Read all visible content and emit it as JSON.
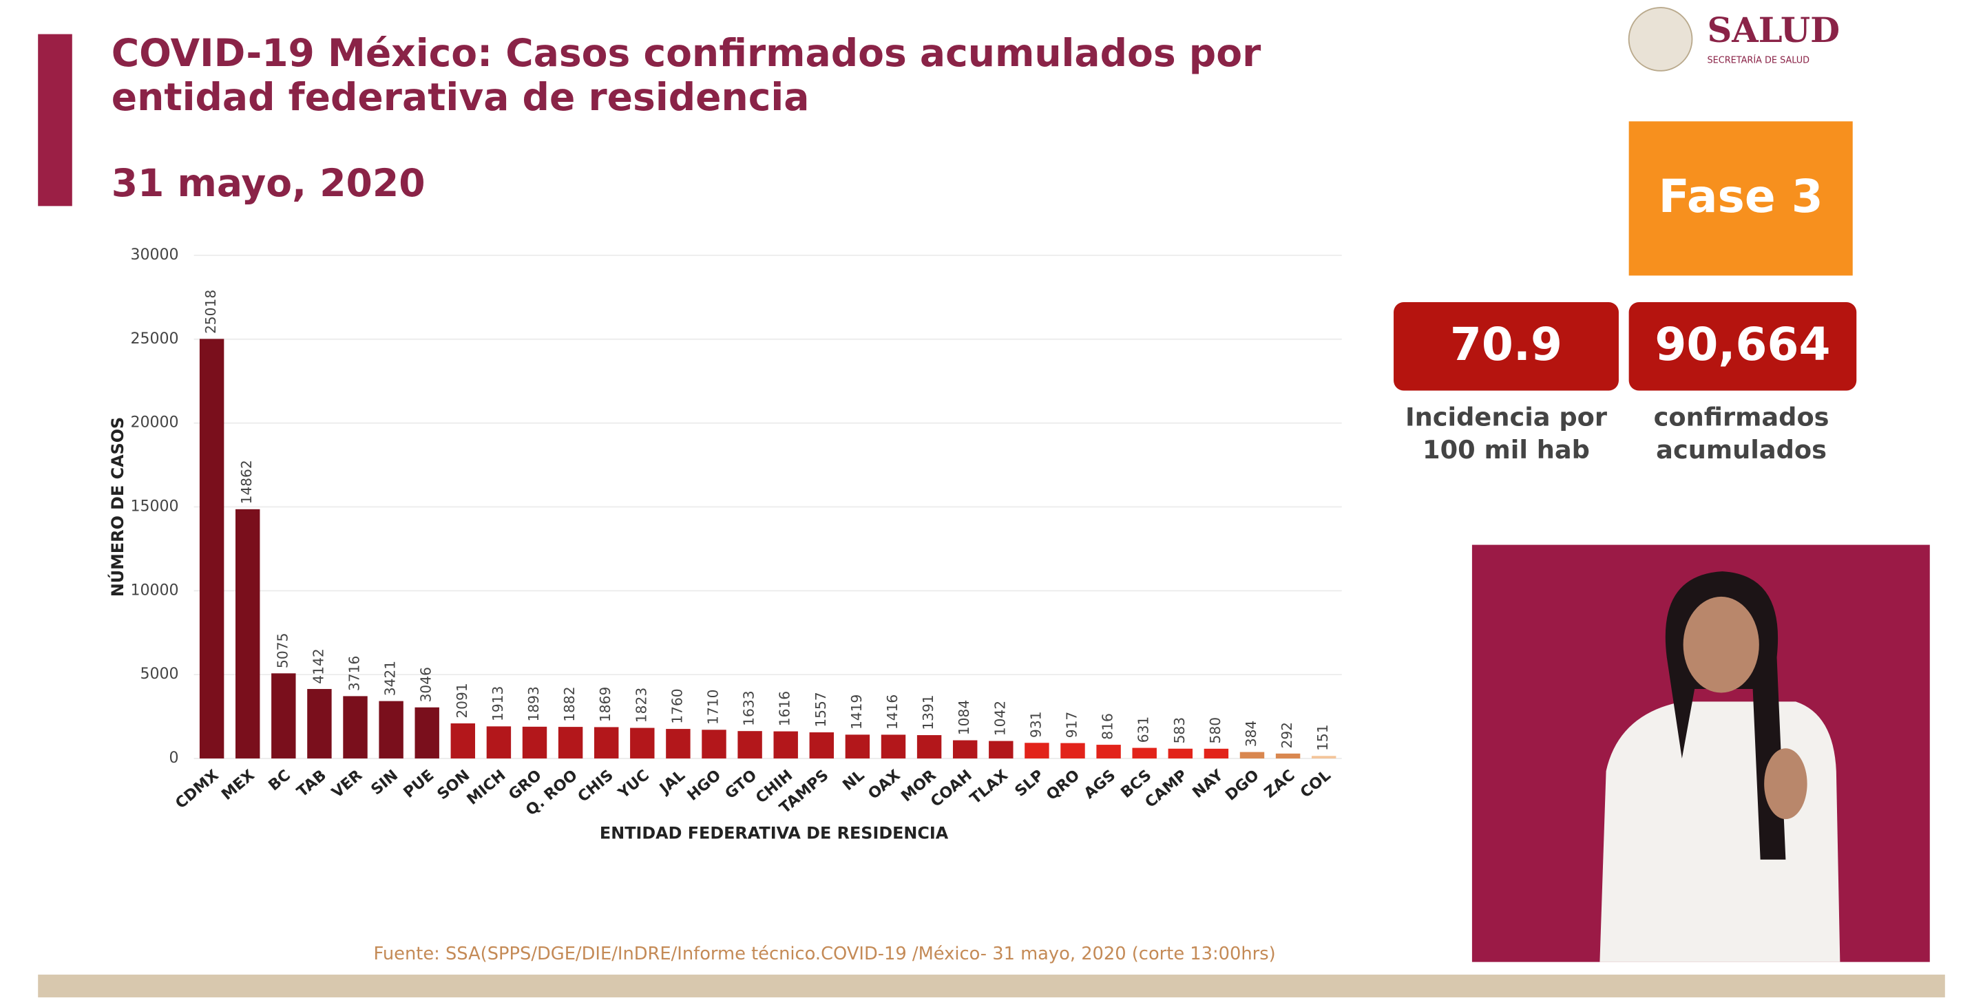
{
  "chart_data": {
    "type": "bar",
    "title": [
      "COVID-19 México: Casos confirmados acumulados por",
      "entidad federativa de residencia"
    ],
    "subtitle": "31 mayo, 2020",
    "y_label": "NÚMERO DE CASOS",
    "x_label": "ENTIDAD FEDERATIVA DE RESIDENCIA",
    "categories": [
      "CDMX",
      "MEX",
      "BC",
      "TAB",
      "VER",
      "SIN",
      "PUE",
      "SON",
      "MICH",
      "GRO",
      "Q. ROO",
      "CHIS",
      "YUC",
      "JAL",
      "HGO",
      "GTO",
      "CHIH",
      "TAMPS",
      "NL",
      "OAX",
      "MOR",
      "COAH",
      "TLAX",
      "SLP",
      "QRO",
      "AGS",
      "BCS",
      "CAMP",
      "NAY",
      "DGO",
      "ZAC",
      "COL"
    ],
    "values": [
      25018,
      14862,
      5075,
      4142,
      3716,
      3421,
      3046,
      2091,
      1913,
      1893,
      1882,
      1869,
      1823,
      1760,
      1710,
      1633,
      1616,
      1557,
      1419,
      1416,
      1391,
      1084,
      1042,
      931,
      917,
      816,
      631,
      583,
      580,
      384,
      292,
      151
    ],
    "colors": [
      "#7a0f1c",
      "#7a0f1c",
      "#7a0f1c",
      "#7a0f1c",
      "#7a0f1c",
      "#7a0f1c",
      "#7a0f1c",
      "#b3171b",
      "#b3171b",
      "#b3171b",
      "#b3171b",
      "#b3171b",
      "#b3171b",
      "#b3171b",
      "#b3171b",
      "#b3171b",
      "#b3171b",
      "#b3171b",
      "#b3171b",
      "#b3171b",
      "#b3171b",
      "#b3171b",
      "#b3171b",
      "#e2231a",
      "#e2231a",
      "#e2231a",
      "#e2231a",
      "#e2231a",
      "#e2231a",
      "#d9874f",
      "#d9874f",
      "#f4c59a"
    ],
    "ylim": [
      0,
      30000
    ],
    "yticks": [
      0,
      5000,
      10000,
      15000,
      20000,
      25000,
      30000
    ],
    "grid": true
  },
  "logo": {
    "name": "SALUD",
    "subname": "SECRETARÍA DE SALUD"
  },
  "phase": "Fase 3",
  "incidence": {
    "value": "70.9",
    "caption": [
      "Incidencia por",
      "100 mil hab"
    ]
  },
  "confirmed": {
    "value": "90,664",
    "caption": [
      "confirmados",
      "acumulados"
    ]
  },
  "source": "Fuente: SSA(SPPS/DGE/DIE/InDRE/Informe técnico.COVID-19 /México- 31 mayo, 2020 (corte 13:00hrs)"
}
